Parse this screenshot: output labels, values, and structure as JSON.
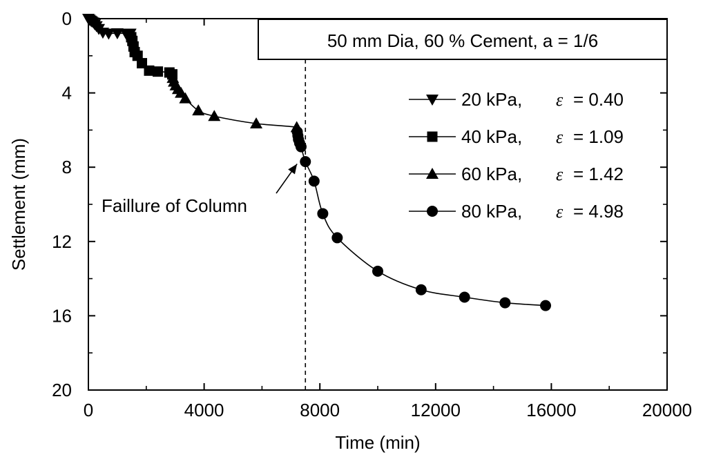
{
  "chart_data": {
    "type": "scatter",
    "title": "50 mm Dia, 60 % Cement, a = 1/6",
    "xlabel": "Time (min)",
    "ylabel": "Settlement (mm)",
    "xlim": [
      0,
      20000
    ],
    "ylim": [
      0,
      20
    ],
    "y_inverted": true,
    "xticks": [
      "0",
      "4000",
      "8000",
      "12000",
      "16000",
      "20000"
    ],
    "yticks": [
      "0",
      "4",
      "8",
      "12",
      "16",
      "20"
    ],
    "grid": false,
    "legend_placement": "right",
    "series": [
      {
        "name": "20 kPa,",
        "epsilon": "= 0.40",
        "marker": "triangle-down",
        "points": [
          [
            0,
            0
          ],
          [
            40,
            0.05
          ],
          [
            80,
            0.1
          ],
          [
            120,
            0.15
          ],
          [
            170,
            0.2
          ],
          [
            220,
            0.3
          ],
          [
            280,
            0.4
          ],
          [
            360,
            0.55
          ],
          [
            500,
            0.75
          ],
          [
            700,
            0.8
          ],
          [
            1000,
            0.78
          ],
          [
            1300,
            0.8
          ],
          [
            1450,
            0.8
          ]
        ]
      },
      {
        "name": "40 kPa,",
        "epsilon": "= 1.09",
        "marker": "square",
        "points": [
          [
            1450,
            0.8
          ],
          [
            1480,
            1.0
          ],
          [
            1520,
            1.2
          ],
          [
            1560,
            1.5
          ],
          [
            1600,
            1.8
          ],
          [
            1700,
            2.0
          ],
          [
            1850,
            2.4
          ],
          [
            2100,
            2.8
          ],
          [
            2400,
            2.85
          ],
          [
            2800,
            2.9
          ],
          [
            2900,
            3.0
          ]
        ]
      },
      {
        "name": "60 kPa,",
        "epsilon": "= 1.42",
        "marker": "triangle-up",
        "points": [
          [
            2900,
            3.0
          ],
          [
            2920,
            3.2
          ],
          [
            2960,
            3.4
          ],
          [
            3020,
            3.6
          ],
          [
            3100,
            3.8
          ],
          [
            3200,
            4.0
          ],
          [
            3350,
            4.3
          ],
          [
            3800,
            4.95
          ],
          [
            4350,
            5.25
          ],
          [
            5800,
            5.65
          ],
          [
            7200,
            5.85
          ]
        ]
      },
      {
        "name": "80 kPa,",
        "epsilon": "= 4.98",
        "marker": "circle",
        "points": [
          [
            7200,
            5.85
          ],
          [
            7220,
            6.1
          ],
          [
            7240,
            6.3
          ],
          [
            7260,
            6.5
          ],
          [
            7300,
            6.7
          ],
          [
            7350,
            6.9
          ],
          [
            7500,
            7.7
          ],
          [
            7800,
            8.75
          ],
          [
            8100,
            10.5
          ],
          [
            8600,
            11.8
          ],
          [
            10000,
            13.6
          ],
          [
            11500,
            14.6
          ],
          [
            13000,
            15.0
          ],
          [
            14400,
            15.3
          ],
          [
            15800,
            15.45
          ]
        ]
      }
    ],
    "annotations": {
      "failure_label": "Faillure of Column",
      "failure_time": 7500,
      "arrow_target": [
        7450,
        7.6
      ]
    }
  }
}
